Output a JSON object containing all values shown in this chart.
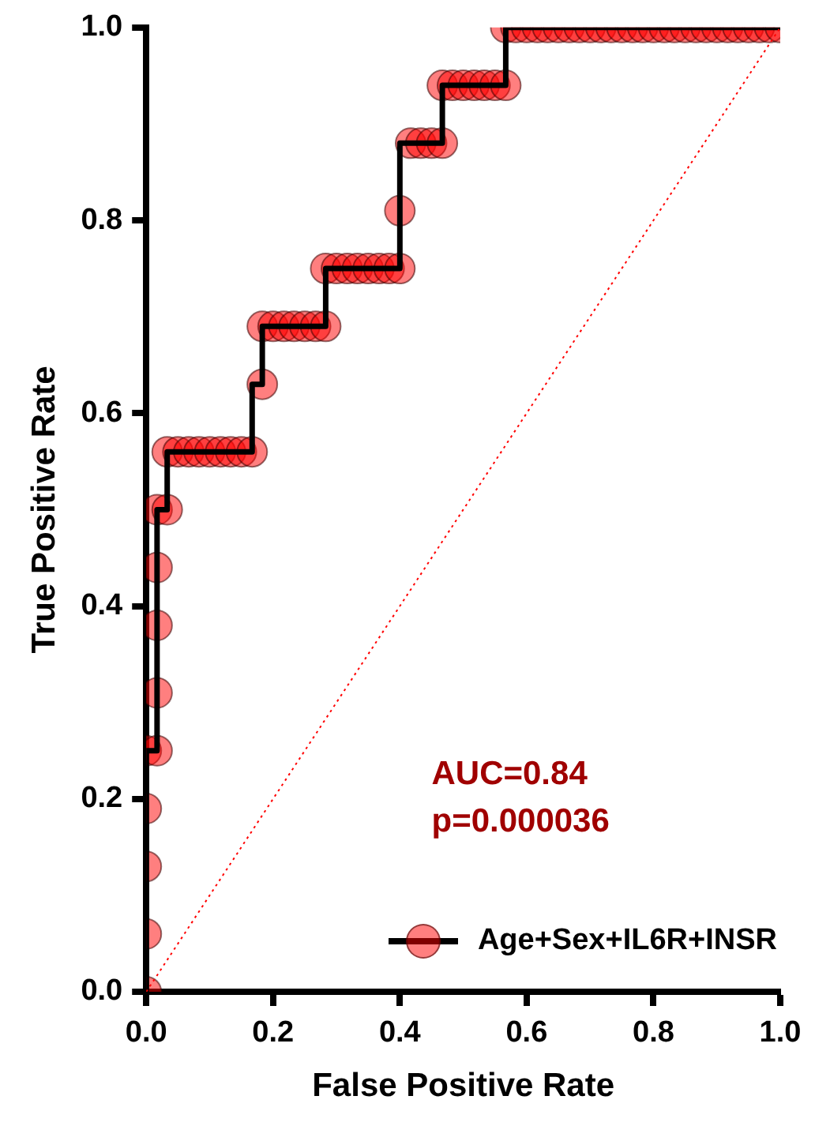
{
  "chart_data": {
    "type": "step",
    "xlabel": "False Positive Rate",
    "ylabel": "True Positive Rate",
    "xlim": [
      0,
      1
    ],
    "ylim": [
      0,
      1
    ],
    "xticks": [
      {
        "value": 0,
        "label": "0.0"
      },
      {
        "value": 0.2,
        "label": "0.2"
      },
      {
        "value": 0.4,
        "label": "0.4"
      },
      {
        "value": 0.6,
        "label": "0.6"
      },
      {
        "value": 0.8,
        "label": "0.8"
      },
      {
        "value": 1,
        "label": "1.0"
      }
    ],
    "yticks": [
      {
        "value": 0,
        "label": "0.0"
      },
      {
        "value": 0.2,
        "label": "0.2"
      },
      {
        "value": 0.4,
        "label": "0.4"
      },
      {
        "value": 0.6,
        "label": "0.6"
      },
      {
        "value": 0.8,
        "label": "0.8"
      },
      {
        "value": 1,
        "label": "1.0"
      }
    ],
    "grid": false,
    "legend": "bottom right",
    "annotations": [
      "AUC=0.84",
      "p=0.000036"
    ],
    "series": [
      {
        "name": "Age+Sex+IL6R+INSR",
        "color": "#ff0000",
        "marker": "circle",
        "x": [
          0,
          0,
          0,
          0,
          0,
          0.017,
          0.017,
          0.017,
          0.017,
          0.017,
          0.033,
          0.033,
          0.05,
          0.067,
          0.083,
          0.1,
          0.117,
          0.133,
          0.15,
          0.167,
          0.183,
          0.183,
          0.2,
          0.217,
          0.233,
          0.25,
          0.267,
          0.283,
          0.283,
          0.3,
          0.317,
          0.333,
          0.35,
          0.367,
          0.383,
          0.4,
          0.4,
          0.417,
          0.433,
          0.45,
          0.467,
          0.467,
          0.483,
          0.5,
          0.517,
          0.533,
          0.55,
          0.567,
          0.567,
          0.583,
          0.6,
          0.617,
          0.633,
          0.65,
          0.667,
          0.683,
          0.7,
          0.717,
          0.733,
          0.75,
          0.767,
          0.783,
          0.8,
          0.817,
          0.833,
          0.85,
          0.867,
          0.883,
          0.9,
          0.917,
          0.933,
          0.95,
          0.967,
          0.983,
          1
        ],
        "values": [
          0,
          0.06,
          0.13,
          0.19,
          0.25,
          0.25,
          0.31,
          0.38,
          0.44,
          0.5,
          0.5,
          0.56,
          0.56,
          0.56,
          0.56,
          0.56,
          0.56,
          0.56,
          0.56,
          0.56,
          0.63,
          0.69,
          0.69,
          0.69,
          0.69,
          0.69,
          0.69,
          0.69,
          0.75,
          0.75,
          0.75,
          0.75,
          0.75,
          0.75,
          0.75,
          0.75,
          0.81,
          0.88,
          0.88,
          0.88,
          0.88,
          0.94,
          0.94,
          0.94,
          0.94,
          0.94,
          0.94,
          0.94,
          1,
          1,
          1,
          1,
          1,
          1,
          1,
          1,
          1,
          1,
          1,
          1,
          1,
          1,
          1,
          1,
          1,
          1,
          1,
          1,
          1,
          1,
          1,
          1,
          1,
          1,
          1
        ]
      },
      {
        "type": "line",
        "color": "#ff0000",
        "marker": "none",
        "line_style": "dotted",
        "x": [
          0,
          1
        ],
        "values": [
          0,
          1
        ]
      }
    ]
  }
}
